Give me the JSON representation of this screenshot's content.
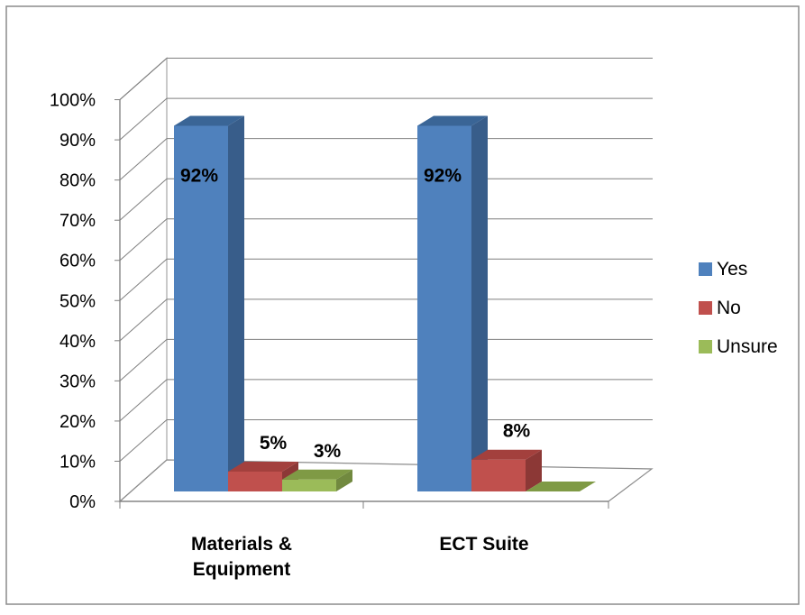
{
  "chart_data": {
    "type": "bar",
    "categories": [
      "Materials &\nEquipment",
      "ECT Suite"
    ],
    "series": [
      {
        "name": "Yes",
        "values": [
          92,
          92
        ],
        "data_labels": [
          "92%",
          "92%"
        ]
      },
      {
        "name": "No",
        "values": [
          5,
          8
        ],
        "data_labels": [
          "5%",
          "8%"
        ]
      },
      {
        "name": "Unsure",
        "values": [
          3,
          0
        ],
        "data_labels": [
          "3%",
          ""
        ]
      }
    ],
    "ylim": [
      0,
      100
    ],
    "yticks": [
      "0%",
      "10%",
      "20%",
      "30%",
      "40%",
      "50%",
      "60%",
      "70%",
      "80%",
      "90%",
      "100%"
    ],
    "grid": true,
    "legend_position": "right",
    "colors": {
      "Yes": {
        "front": "#4f81bd",
        "side": "#385d8a",
        "top": "#3a6596"
      },
      "No": {
        "front": "#c0504d",
        "side": "#8c3836",
        "top": "#a3403d"
      },
      "Unsure": {
        "front": "#9bbb59",
        "side": "#71893f",
        "top": "#7f9a45"
      }
    }
  }
}
